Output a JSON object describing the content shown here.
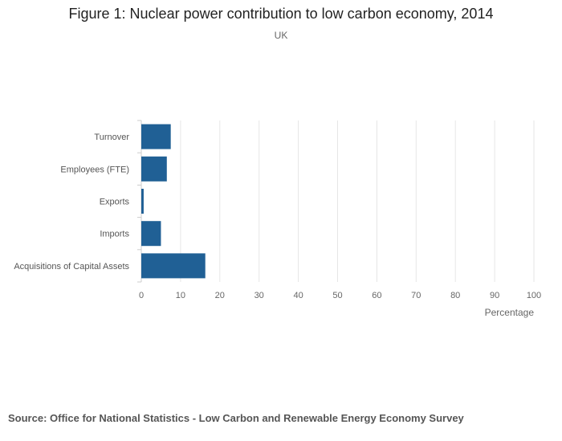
{
  "colors": {
    "bar": "#206095",
    "grid": "#e6e6e6",
    "axis": "#cccccc",
    "tick_text": "#666666",
    "category_text": "#555555"
  },
  "chart_data": {
    "type": "bar",
    "orientation": "horizontal",
    "title": "Figure 1: Nuclear power contribution to low carbon economy, 2014",
    "subtitle": "UK",
    "categories": [
      "Turnover",
      "Employees (FTE)",
      "Exports",
      "Imports",
      "Acquisitions of Capital Assets"
    ],
    "values": [
      7.5,
      6.5,
      0.6,
      5,
      16.3
    ],
    "xlabel": "Percentage",
    "ylabel": "",
    "xlim": [
      0,
      100
    ],
    "xticks": [
      0,
      10,
      20,
      30,
      40,
      50,
      60,
      70,
      80,
      90,
      100
    ],
    "grid": true,
    "legend": "none"
  },
  "source": "Source: Office for National Statistics - Low Carbon and Renewable Energy Economy Survey"
}
